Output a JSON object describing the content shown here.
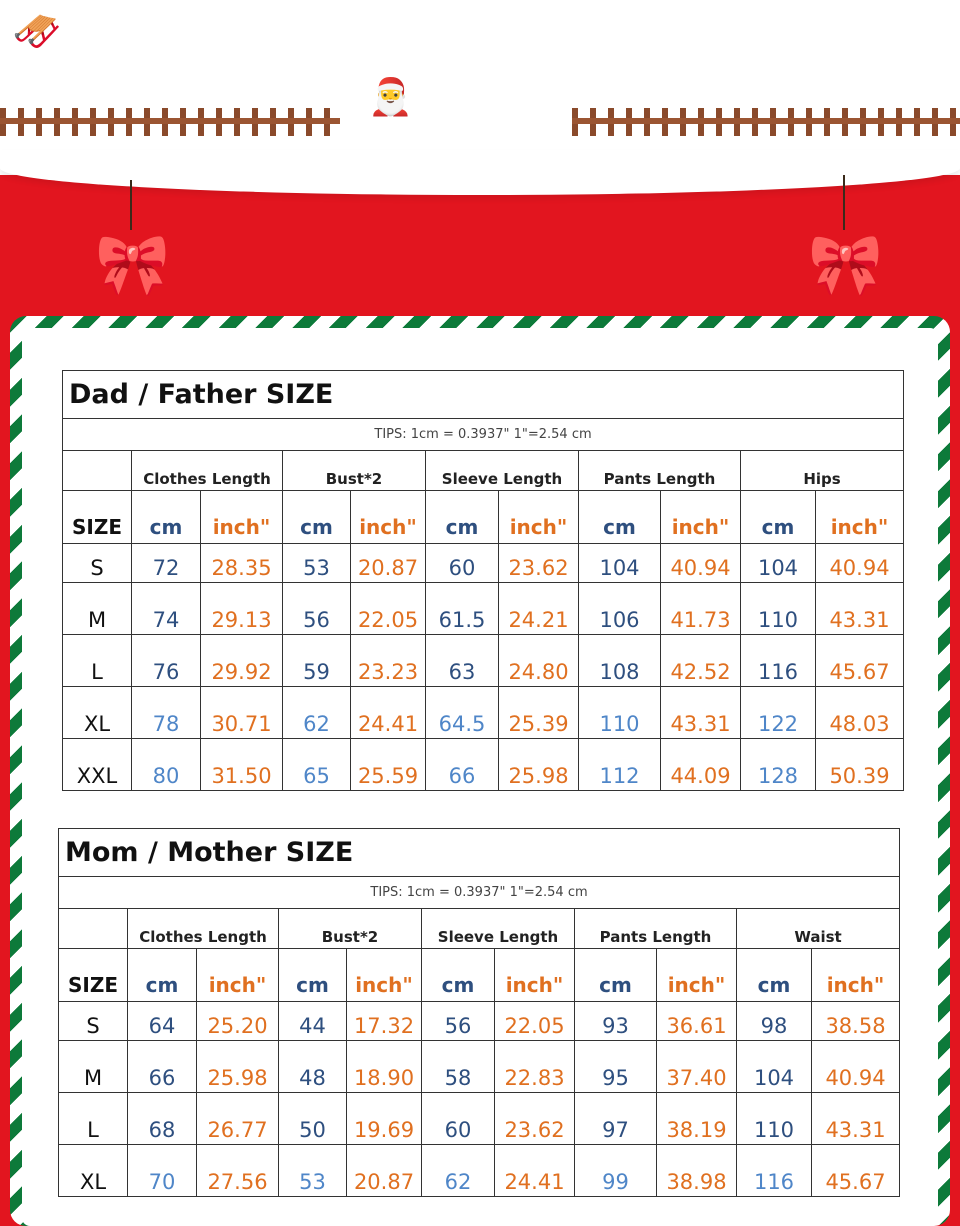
{
  "colors": {
    "background_red": "#e2151f",
    "stripe_green": "#0d7a3a",
    "cm_blue": "#2e4f7f",
    "cm_blue_light": "#4f86c8",
    "inch_orange": "#e07020"
  },
  "decorations": [
    "santa-sleigh",
    "fence",
    "santa-slingshot",
    "christmas-bow-bells"
  ],
  "tables": [
    {
      "title": "Dad / Father  SIZE",
      "tips": "TIPS: 1cm = 0.3937\"   1\"=2.54 cm",
      "size_label": "SIZE",
      "cm_label": "cm",
      "inch_label": "inch\"",
      "groups": [
        "Clothes Length",
        "Bust*2",
        "Sleeve Length",
        "Pants Length",
        "Hips"
      ],
      "rows": [
        {
          "size": "S",
          "values": [
            "72",
            "28.35",
            "53",
            "20.87",
            "60",
            "23.62",
            "104",
            "40.94",
            "104",
            "40.94"
          ]
        },
        {
          "size": "M",
          "values": [
            "74",
            "29.13",
            "56",
            "22.05",
            "61.5",
            "24.21",
            "106",
            "41.73",
            "110",
            "43.31"
          ]
        },
        {
          "size": "L",
          "values": [
            "76",
            "29.92",
            "59",
            "23.23",
            "63",
            "24.80",
            "108",
            "42.52",
            "116",
            "45.67"
          ]
        },
        {
          "size": "XL",
          "values": [
            "78",
            "30.71",
            "62",
            "24.41",
            "64.5",
            "25.39",
            "110",
            "43.31",
            "122",
            "48.03"
          ]
        },
        {
          "size": "XXL",
          "values": [
            "80",
            "31.50",
            "65",
            "25.59",
            "66",
            "25.98",
            "112",
            "44.09",
            "128",
            "50.39"
          ]
        }
      ]
    },
    {
      "title": "Mom / Mother  SIZE",
      "tips": "TIPS: 1cm = 0.3937\"   1\"=2.54 cm",
      "size_label": "SIZE",
      "cm_label": "cm",
      "inch_label": "inch\"",
      "groups": [
        "Clothes Length",
        "Bust*2",
        "Sleeve Length",
        "Pants Length",
        "Waist"
      ],
      "rows": [
        {
          "size": "S",
          "values": [
            "64",
            "25.20",
            "44",
            "17.32",
            "56",
            "22.05",
            "93",
            "36.61",
            "98",
            "38.58"
          ]
        },
        {
          "size": "M",
          "values": [
            "66",
            "25.98",
            "48",
            "18.90",
            "58",
            "22.83",
            "95",
            "37.40",
            "104",
            "40.94"
          ]
        },
        {
          "size": "L",
          "values": [
            "68",
            "26.77",
            "50",
            "19.69",
            "60",
            "23.62",
            "97",
            "38.19",
            "110",
            "43.31"
          ]
        },
        {
          "size": "XL",
          "values": [
            "70",
            "27.56",
            "53",
            "20.87",
            "62",
            "24.41",
            "99",
            "38.98",
            "116",
            "45.67"
          ]
        }
      ]
    }
  ]
}
